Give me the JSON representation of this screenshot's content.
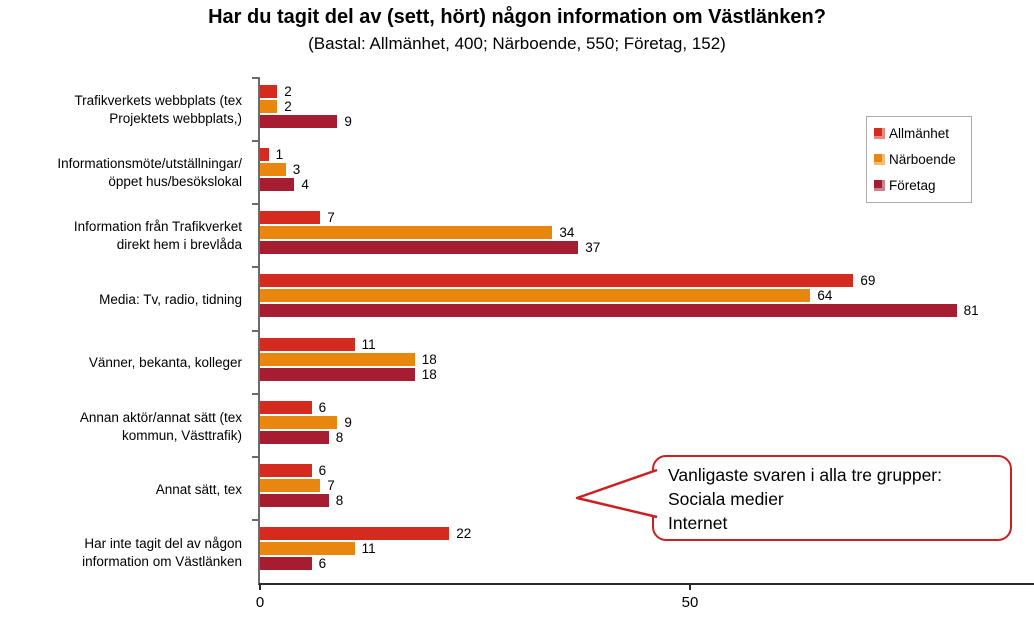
{
  "slide": {
    "title": "Har du tagit del av (sett, hört) någon information om Västlänken?",
    "subtitle": "(Bastal: Allmänhet, 400; Närboende, 550; Företag, 152)"
  },
  "chart_data": {
    "type": "bar",
    "orientation": "horizontal",
    "title": "Har du tagit del av (sett, hört) någon information om Västlänken?",
    "subtitle": "(Bastal: Allmänhet, 400; Närboende, 550; Företag, 152)",
    "categories": [
      [
        "Trafikverkets webbplats (tex",
        "Projektets webbplats,)"
      ],
      [
        "Informationsmöte/utställningar/",
        "öppet hus/besökslokal"
      ],
      [
        "Information från Trafikverket",
        "direkt hem i brevlåda"
      ],
      [
        "Media: Tv, radio, tidning"
      ],
      [
        "Vänner, bekanta, kolleger"
      ],
      [
        "Annan aktör/annat sätt (tex",
        "kommun, Västtrafik)"
      ],
      [
        "Annat sätt, tex"
      ],
      [
        "Har inte tagit del av någon",
        "information om Västlänken"
      ]
    ],
    "series": [
      {
        "name": "Allmänhet",
        "color": "#d52b1e",
        "values": [
          2,
          1,
          7,
          69,
          11,
          6,
          6,
          22
        ]
      },
      {
        "name": "Närboende",
        "color": "#e8860d",
        "values": [
          2,
          3,
          34,
          64,
          18,
          9,
          7,
          11
        ]
      },
      {
        "name": "Företag",
        "color": "#a61c30",
        "values": [
          9,
          4,
          37,
          81,
          18,
          8,
          8,
          6
        ]
      }
    ],
    "xlim": [
      0,
      90
    ],
    "xticks": [
      0,
      50
    ],
    "grid": false,
    "value_labels": true,
    "legend_position": "top-right"
  },
  "legend": {
    "entries": [
      "Allmänhet",
      "Närboende",
      "Företag"
    ]
  },
  "callout": {
    "lines": [
      "Vanligaste svaren i alla tre grupper:",
      "Sociala medier",
      "Internet"
    ],
    "border_color": "#cc2020"
  },
  "colors": {
    "allmanhet": "#d52b1e",
    "narboende": "#e8860d",
    "foretag": "#a61c30",
    "y_axis": "#6b6b6b",
    "x_axis": "#2b2b2b",
    "legend_border": "#ababab"
  }
}
